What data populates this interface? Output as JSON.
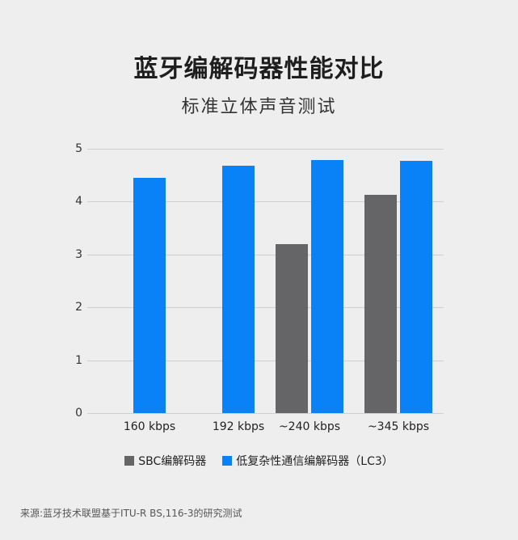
{
  "header": {
    "title": "蓝牙编解码器性能对比",
    "subtitle": "标准立体声音测试"
  },
  "colors": {
    "sbc": "#656567",
    "lc3": "#0a82f7",
    "background": "#efeeef",
    "grid": "#cfcfcf"
  },
  "axis": {
    "y_ticks": [
      "0",
      "1",
      "2",
      "3",
      "4",
      "5"
    ],
    "x_ticks": [
      "160 kbps",
      "192 kbps",
      "~240 kbps",
      "~345 kbps"
    ]
  },
  "legend": {
    "sbc_label": "SBC编解码器",
    "lc3_label": "低复杂性通信编解码器（LC3）"
  },
  "source": "来源:蓝牙技术联盟基于ITU-R BS,116-3的研究测试",
  "chart_data": {
    "type": "bar",
    "title": "蓝牙编解码器性能对比",
    "subtitle": "标准立体声音测试",
    "categories": [
      "160 kbps",
      "192 kbps",
      "~240 kbps",
      "~345 kbps"
    ],
    "series": [
      {
        "name": "SBC编解码器",
        "color": "#656567",
        "values": [
          null,
          null,
          3.2,
          4.13
        ]
      },
      {
        "name": "低复杂性通信编解码器（LC3）",
        "color": "#0a82f7",
        "values": [
          4.45,
          4.68,
          4.79,
          4.77
        ]
      }
    ],
    "xlabel": "",
    "ylabel": "",
    "ylim": [
      0,
      5
    ],
    "yticks": [
      0,
      1,
      2,
      3,
      4,
      5
    ],
    "grid": true,
    "legend_position": "bottom",
    "annotation": "来源:蓝牙技术联盟基于ITU-R BS,116-3的研究测试"
  }
}
